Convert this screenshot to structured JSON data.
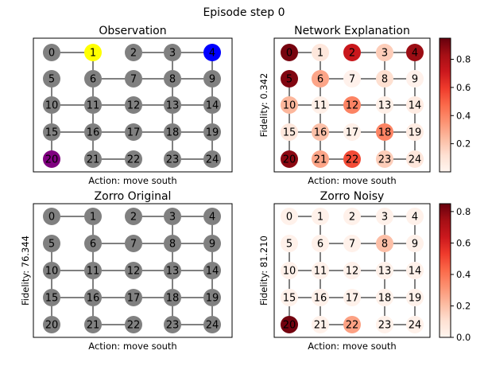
{
  "figure": {
    "title": "Episode step 0"
  },
  "chart_data": [
    {
      "type": "graph",
      "title": "Observation",
      "xlabel": "Action: move south",
      "ylabel": "",
      "colorbar": null,
      "node_colors": {
        "1": "#ffff00",
        "4": "#0000ff",
        "20": "#800080"
      },
      "default_node_color": "#808080"
    },
    {
      "type": "graph-heatmap",
      "title": "Network Explanation",
      "xlabel": "Action: move south",
      "ylabel": "Fidelity: 0.342",
      "colormap": "Reds",
      "colorbar": {
        "min": 0.0,
        "max": 0.95,
        "ticks": [
          0.2,
          0.4,
          0.6,
          0.8
        ]
      },
      "values": [
        0.92,
        0.08,
        0.72,
        0.18,
        0.85,
        0.9,
        0.3,
        0.02,
        0.12,
        0.02,
        0.25,
        0.03,
        0.4,
        0.03,
        0.05,
        0.08,
        0.22,
        0.03,
        0.4,
        0.05,
        0.88,
        0.3,
        0.55,
        0.18,
        0.08
      ]
    },
    {
      "type": "graph",
      "title": "Zorro Original",
      "xlabel": "Action: move south",
      "ylabel": "Fidelity: 76.344",
      "colorbar": null,
      "node_colors": {},
      "default_node_color": "#808080"
    },
    {
      "type": "graph-heatmap",
      "title": "Zorro Noisy",
      "xlabel": "Action: move south",
      "ylabel": "Fidelity: 81.210",
      "colormap": "Reds",
      "colorbar": {
        "min": 0.0,
        "max": 0.85,
        "ticks": [
          0.0,
          0.2,
          0.4,
          0.6,
          0.8
        ]
      },
      "values": [
        0.02,
        0.02,
        0.02,
        0.02,
        0.02,
        0.02,
        0.02,
        0.02,
        0.2,
        0.02,
        0.02,
        0.02,
        0.02,
        0.02,
        0.02,
        0.02,
        0.02,
        0.02,
        0.02,
        0.02,
        0.83,
        0.02,
        0.28,
        0.02,
        0.02
      ]
    }
  ],
  "grid": {
    "nodes": [
      "0",
      "1",
      "2",
      "3",
      "4",
      "5",
      "6",
      "7",
      "8",
      "9",
      "10",
      "11",
      "12",
      "13",
      "14",
      "15",
      "16",
      "17",
      "18",
      "19",
      "20",
      "21",
      "22",
      "23",
      "24"
    ],
    "edges": [
      [
        0,
        1
      ],
      [
        2,
        3
      ],
      [
        3,
        4
      ],
      [
        5,
        10
      ],
      [
        6,
        7
      ],
      [
        7,
        8
      ],
      [
        8,
        9
      ],
      [
        10,
        11
      ],
      [
        11,
        12
      ],
      [
        12,
        13
      ],
      [
        13,
        14
      ],
      [
        15,
        16
      ],
      [
        16,
        17
      ],
      [
        17,
        18
      ],
      [
        18,
        19
      ],
      [
        21,
        22
      ],
      [
        23,
        24
      ],
      [
        1,
        6
      ],
      [
        3,
        8
      ],
      [
        4,
        9
      ],
      [
        6,
        11
      ],
      [
        8,
        13
      ],
      [
        9,
        14
      ],
      [
        10,
        15
      ],
      [
        11,
        16
      ],
      [
        13,
        18
      ],
      [
        14,
        19
      ],
      [
        15,
        20
      ],
      [
        16,
        21
      ],
      [
        18,
        23
      ],
      [
        19,
        24
      ]
    ]
  }
}
